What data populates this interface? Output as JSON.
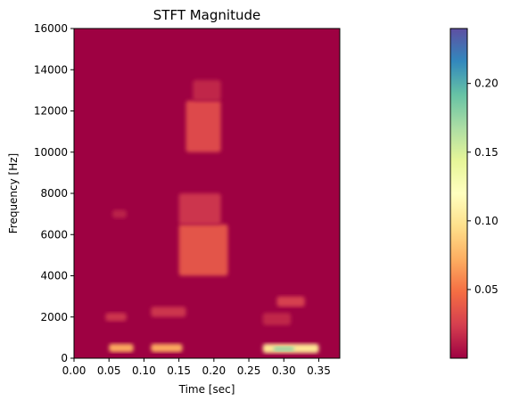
{
  "chart_data": {
    "type": "heatmap",
    "title": "STFT Magnitude",
    "xlabel": "Time [sec]",
    "ylabel": "Frequency [Hz]",
    "xlim": [
      0,
      0.38
    ],
    "ylim": [
      0,
      16000
    ],
    "x_ticks": [
      0.0,
      0.05,
      0.1,
      0.15,
      0.2,
      0.25,
      0.3,
      0.35
    ],
    "x_tick_labels": [
      "0.00",
      "0.05",
      "0.10",
      "0.15",
      "0.20",
      "0.25",
      "0.30",
      "0.35"
    ],
    "y_ticks": [
      0,
      2000,
      4000,
      6000,
      8000,
      10000,
      12000,
      14000,
      16000
    ],
    "y_tick_labels": [
      "0",
      "2000",
      "4000",
      "6000",
      "8000",
      "10000",
      "12000",
      "14000",
      "16000"
    ],
    "colormap": "Spectral",
    "colorbar": {
      "range": [
        0.0,
        0.24
      ],
      "ticks": [
        0.05,
        0.1,
        0.15,
        0.2
      ],
      "tick_labels": [
        "0.05",
        "0.10",
        "0.15",
        "0.20"
      ]
    },
    "grid": false,
    "regions": [
      {
        "t": [
          0.05,
          0.085
        ],
        "f": [
          300,
          700
        ],
        "magnitude": 0.07
      },
      {
        "t": [
          0.11,
          0.155
        ],
        "f": [
          300,
          700
        ],
        "magnitude": 0.07
      },
      {
        "t": [
          0.27,
          0.35
        ],
        "f": [
          250,
          700
        ],
        "magnitude": 0.1
      },
      {
        "t": [
          0.285,
          0.315
        ],
        "f": [
          350,
          550
        ],
        "magnitude": 0.18
      },
      {
        "t": [
          0.045,
          0.075
        ],
        "f": [
          1800,
          2200
        ],
        "magnitude": 0.02
      },
      {
        "t": [
          0.11,
          0.16
        ],
        "f": [
          2000,
          2500
        ],
        "magnitude": 0.02
      },
      {
        "t": [
          0.29,
          0.33
        ],
        "f": [
          2500,
          3000
        ],
        "magnitude": 0.025
      },
      {
        "t": [
          0.27,
          0.31
        ],
        "f": [
          1600,
          2200
        ],
        "magnitude": 0.015
      },
      {
        "t": [
          0.15,
          0.22
        ],
        "f": [
          4000,
          6500
        ],
        "magnitude": 0.035
      },
      {
        "t": [
          0.15,
          0.21
        ],
        "f": [
          6500,
          8000
        ],
        "magnitude": 0.02
      },
      {
        "t": [
          0.16,
          0.21
        ],
        "f": [
          10000,
          12500
        ],
        "magnitude": 0.03
      },
      {
        "t": [
          0.17,
          0.21
        ],
        "f": [
          12500,
          13500
        ],
        "magnitude": 0.015
      },
      {
        "t": [
          0.055,
          0.075
        ],
        "f": [
          6800,
          7200
        ],
        "magnitude": 0.012
      }
    ]
  }
}
